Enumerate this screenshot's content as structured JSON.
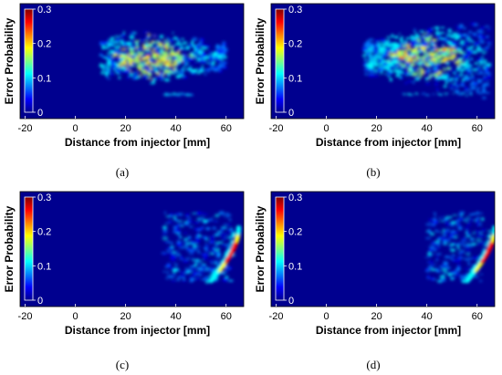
{
  "colors": {
    "background": "#00008f",
    "colormap": [
      "#00008f",
      "#0000ff",
      "#0080ff",
      "#00ffff",
      "#80ff80",
      "#ffff00",
      "#ff8000",
      "#ff0000",
      "#800000"
    ]
  },
  "chart_data": [
    {
      "type": "heatmap",
      "caption": "(a)",
      "xlabel": "Distance from injector [mm]",
      "ylabel": "Error Probability",
      "x_ticks": [
        -20,
        0,
        20,
        40,
        60
      ],
      "xlim": [
        -22,
        67
      ],
      "colorbar": {
        "ticks": [
          "0.3",
          "0.2",
          "0.1",
          "0"
        ],
        "range": [
          0,
          0.3
        ]
      },
      "pattern": "spray-core-center"
    },
    {
      "type": "heatmap",
      "caption": "(b)",
      "xlabel": "Distance from injector [mm]",
      "ylabel": "Error Probability",
      "x_ticks": [
        -20,
        0,
        20,
        40,
        60
      ],
      "xlim": [
        -22,
        67
      ],
      "colorbar": {
        "ticks": [
          "0.3",
          "0.2",
          "0.1",
          "0"
        ],
        "range": [
          0,
          0.3
        ]
      },
      "pattern": "spray-core-wide"
    },
    {
      "type": "heatmap",
      "caption": "(c)",
      "xlabel": "Distance from injector [mm]",
      "ylabel": "Error Probability",
      "x_ticks": [
        -20,
        0,
        20,
        40,
        60
      ],
      "xlim": [
        -22,
        67
      ],
      "colorbar": {
        "ticks": [
          "0.3",
          "0.2",
          "0.1",
          "0"
        ],
        "range": [
          0,
          0.3
        ]
      },
      "pattern": "spray-front-arc"
    },
    {
      "type": "heatmap",
      "caption": "(d)",
      "xlabel": "Distance from injector [mm]",
      "ylabel": "Error Probability",
      "x_ticks": [
        -20,
        0,
        20,
        40,
        60
      ],
      "xlim": [
        -22,
        67
      ],
      "colorbar": {
        "ticks": [
          "0.3",
          "0.2",
          "0.1",
          "0"
        ],
        "range": [
          0,
          0.3
        ]
      },
      "pattern": "spray-front-arc-narrow"
    }
  ]
}
